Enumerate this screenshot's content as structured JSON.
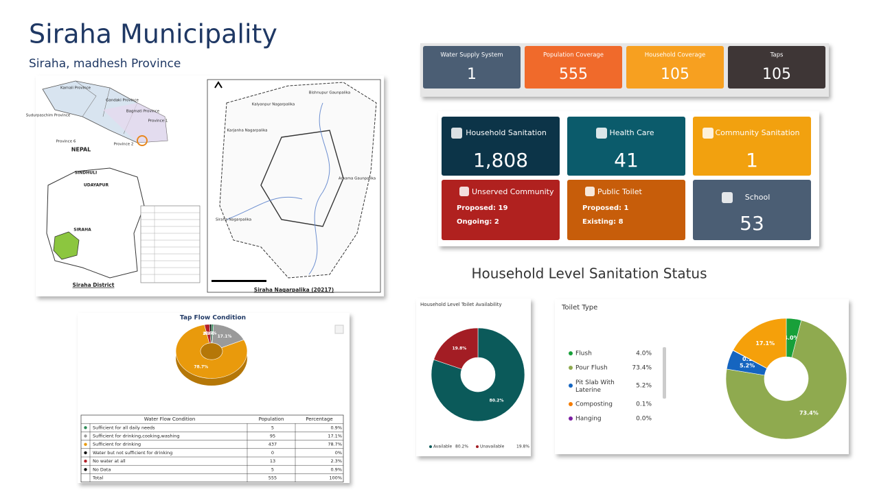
{
  "header": {
    "title": "Siraha Municipality",
    "subtitle": "Siraha, madhesh Province"
  },
  "map": {
    "nepal_labels": [
      "Karnali Province",
      "Gandaki Province",
      "Bagmati Province",
      "Sudurpaschim Province",
      "Province 1",
      "Province 6",
      "Province 2",
      "NEPAL"
    ],
    "district_labels": [
      "SINDHULI",
      "UDAYAPUR",
      "SIRAHA",
      "Siraha District"
    ],
    "municipality_labels": [
      "Kalyanpur Nagarpalika",
      "Bishnupur Gaunpalika",
      "Karjanha Nagarpalika",
      "Arnama Gaunpalika",
      "Siraha Nagarpalika"
    ],
    "caption": "Siraha Nagarpalika (20217)"
  },
  "stats_top": [
    {
      "label": "Water Supply System",
      "value": "1",
      "color": "#4b5e74"
    },
    {
      "label": "Population Coverage",
      "value": "555",
      "color": "#f06a2b"
    },
    {
      "label": "Household Coverage",
      "value": "105",
      "color": "#f7a020"
    },
    {
      "label": "Taps",
      "value": "105",
      "color": "#3e3636"
    }
  ],
  "stats_cards": [
    {
      "label": "Household Sanitation",
      "value": "1,808",
      "color": "#0c3448"
    },
    {
      "label": "Health Care",
      "value": "41",
      "color": "#0b5b6b"
    },
    {
      "label": "Community Sanitation",
      "value": "1",
      "color": "#f2a10f"
    },
    {
      "label": "Unserved Community",
      "lines": [
        "Proposed: 19",
        "Ongoing: 2"
      ],
      "color": "#b0211f"
    },
    {
      "label": "Public Toilet",
      "lines": [
        "Proposed: 1",
        "Existing: 8"
      ],
      "color": "#c75d0a"
    },
    {
      "label": "School",
      "value": "53",
      "color": "#4b5e74"
    }
  ],
  "section_title": "Household Level Sanitation Status",
  "tap_flow": {
    "type": "pie",
    "title": "Tap Flow Condition",
    "categories": [
      "Sufficient for all daily needs",
      "Sufficient for drinking,cooking,washing",
      "Sufficient for drinking",
      "Water but not sufficient for drinking",
      "No water at all",
      "No Data"
    ],
    "values": [
      0.9,
      17.1,
      78.7,
      0,
      2.3,
      0.9
    ],
    "value_labels": [
      "0.9%",
      "17.1%",
      "78.7%",
      "0%",
      "2.3%",
      "0.9%"
    ],
    "colors": [
      "#2e8b57",
      "#9a9a9a",
      "#e99a0c",
      "#111111",
      "#b3202a",
      "#111111"
    ],
    "table": {
      "columns": [
        "Water Flow Condition",
        "Population",
        "Percentage"
      ],
      "rows": [
        [
          "Sufficient for all daily needs",
          "5",
          "0.9%"
        ],
        [
          "Sufficient for drinking,cooking,washing",
          "95",
          "17.1%"
        ],
        [
          "Sufficient for drinking",
          "437",
          "78.7%"
        ],
        [
          "Water but not sufficient for drinking",
          "0",
          "0%"
        ],
        [
          "No water at all",
          "13",
          "2.3%"
        ],
        [
          "No Data",
          "5",
          "0.9%"
        ],
        [
          "Total",
          "555",
          "100%"
        ]
      ]
    }
  },
  "toilet_availability": {
    "type": "pie",
    "title": "Household Level Toilet Availability",
    "categories": [
      "Available",
      "Unavailable"
    ],
    "values": [
      80.2,
      19.8
    ],
    "value_labels": [
      "80.2%",
      "19.8%"
    ],
    "colors": [
      "#0b5a5a",
      "#a31d24"
    ]
  },
  "toilet_type": {
    "type": "pie",
    "title": "Toilet Type",
    "categories": [
      "Flush",
      "Pour Flush",
      "Pit Slab With Laterine",
      "Composting",
      "Hanging",
      null
    ],
    "values": [
      4.0,
      73.4,
      5.2,
      0.1,
      0.0,
      17.1
    ],
    "value_labels": [
      "4.0%",
      "73.4%",
      "5.2%",
      "0.1%",
      "0.0%",
      "17.1%"
    ],
    "colors": [
      "#18a03a",
      "#8faa4f",
      "#1565c0",
      "#f57c00",
      "#7b1fa2",
      "#f5a00a"
    ]
  }
}
